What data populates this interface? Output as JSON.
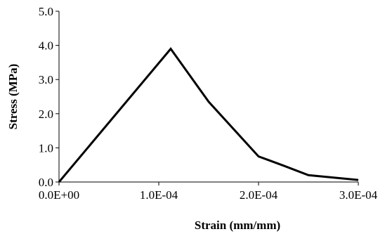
{
  "chart_data": {
    "type": "line",
    "xlabel": "Strain (mm/mm)",
    "ylabel": "Stress (MPa)",
    "xlim": [
      0,
      0.0003
    ],
    "ylim": [
      0,
      5
    ],
    "x_ticks": [
      0,
      0.0001,
      0.0002,
      0.0003
    ],
    "x_tick_labels": [
      "0.0E+00",
      "1.0E-04",
      "2.0E-04",
      "3.0E-04"
    ],
    "y_ticks": [
      0,
      1,
      2,
      3,
      4,
      5
    ],
    "y_tick_labels": [
      "0.0",
      "1.0",
      "2.0",
      "3.0",
      "4.0",
      "5.0"
    ],
    "grid": false,
    "legend": "none",
    "series": [
      {
        "color": "#000000",
        "x": [
          0,
          0.000112,
          0.00015,
          0.0002,
          0.000225,
          0.00025,
          0.0003
        ],
        "y": [
          0,
          3.9,
          2.35,
          0.75,
          0.48,
          0.2,
          0.06
        ]
      }
    ]
  }
}
